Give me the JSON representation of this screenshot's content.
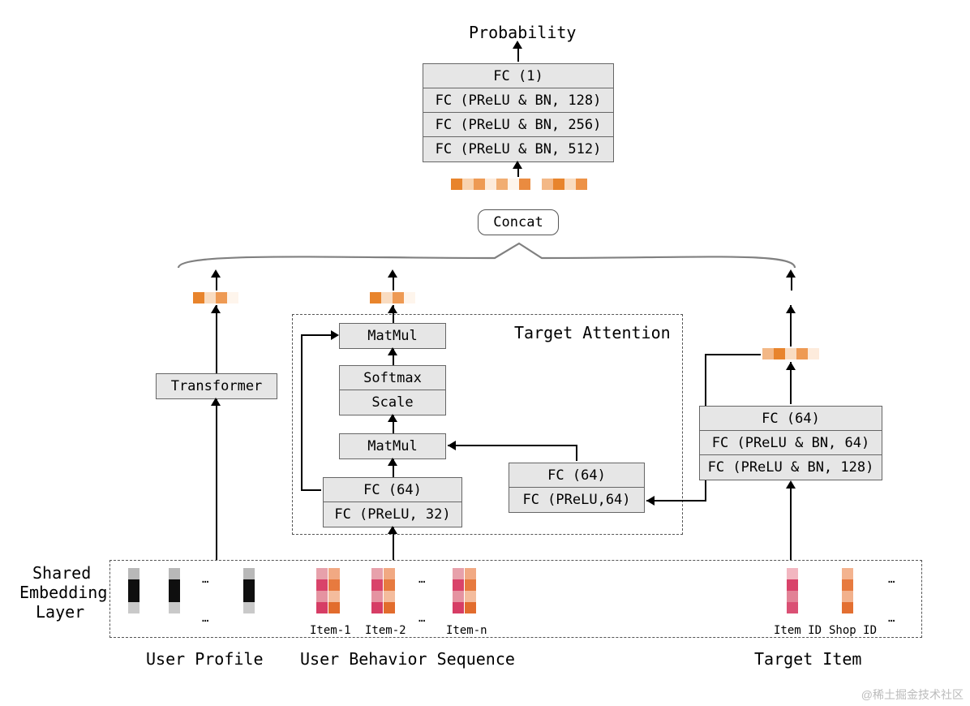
{
  "background_color": "#ffffff",
  "font_family": "monospace",
  "labels": {
    "probability": "Probability",
    "concat": "Concat",
    "target_attention": "Target Attention",
    "shared_embedding_layer_l1": "Shared",
    "shared_embedding_layer_l2": "Embedding",
    "shared_embedding_layer_l3": "Layer",
    "user_profile": "User Profile",
    "user_behavior_sequence": "User Behavior Sequence",
    "target_item": "Target Item",
    "item1": "Item-1",
    "item2": "Item-2",
    "itemn": "Item-n",
    "item_id": "Item ID",
    "shop_id": "Shop ID",
    "dots": "…",
    "watermark": "@稀土掘金技术社区"
  },
  "blocks": {
    "top_stack": [
      "FC (1)",
      "FC (PReLU & BN, 128)",
      "FC (PReLU & BN, 256)",
      "FC (PReLU & BN, 512)"
    ],
    "transformer": "Transformer",
    "matmul_top": "MatMul",
    "softmax": "Softmax",
    "scale": "Scale",
    "matmul_bot": "MatMul",
    "seq_fc_top": "FC (64)",
    "seq_fc_bot": "FC (PReLU, 32)",
    "attn_fc_top": "FC (64)",
    "attn_fc_bot": "FC (PReLU,64)",
    "target_fc1": "FC (64)",
    "target_fc2": "FC (PReLU & BN, 64)",
    "target_fc3": "FC (PReLU & BN, 128)"
  },
  "colors": {
    "box_fill": "#e6e6e6",
    "box_border": "#666666",
    "dash_border": "#555555",
    "brace": "#808080",
    "orange_palette": [
      "#e8842c",
      "#f6c9a0",
      "#ee9a54",
      "#fdebdc",
      "#f1ad72",
      "#fef5ec",
      "#ea8b40",
      "#fff",
      "#f3b887",
      "#e8842c",
      "#f9dcc1",
      "#ed9247"
    ],
    "concat_strip": [
      "#e8842c",
      "#f8d3b0",
      "#ee9a54",
      "#fdebdc",
      "#f1ad72",
      "#fef5ec",
      "#ea8b40",
      "#ffffff",
      "#f3b887",
      "#e8842c",
      "#f9dcc1",
      "#ed9247"
    ],
    "mini_strip": [
      "#e8842c",
      "#f9dcc1",
      "#ee9a54",
      "#fef5ec"
    ],
    "target_mini": [
      "#f3b887",
      "#e8842c",
      "#f9dcc1",
      "#ee9a54",
      "#fdebdc"
    ],
    "profile_col": [
      "#b8b8b8",
      "#0f0f0f",
      "#0f0f0f",
      "#c9c9c9"
    ],
    "item_colA": [
      "#e7a1ab",
      "#d9436a",
      "#e593a1",
      "#d63d65"
    ],
    "item_colB": [
      "#f1a983",
      "#e77a3f",
      "#f4bc9d",
      "#e26c2d"
    ],
    "target_itemA": [
      "#f2b6c0",
      "#d9436a",
      "#e28296",
      "#da5074"
    ],
    "target_shopB": [
      "#f3b38f",
      "#e77a3f",
      "#f2b18c",
      "#e36f31"
    ]
  }
}
